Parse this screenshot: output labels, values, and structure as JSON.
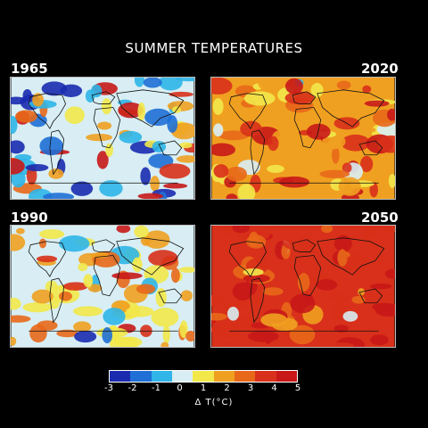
{
  "title": "SUMMER TEMPERATURES",
  "panels": [
    {
      "label": "1965",
      "scheme": "mixed_cool"
    },
    {
      "label": "2020",
      "scheme": "warm"
    },
    {
      "label": "1990",
      "scheme": "mixed_warm"
    },
    {
      "label": "2050",
      "scheme": "hot"
    }
  ],
  "legend": {
    "colors": [
      "#1a2bb0",
      "#1f6fd6",
      "#2fb5e8",
      "#d8eef4",
      "#f2e84a",
      "#f0a020",
      "#e8681a",
      "#d8301a",
      "#c81818"
    ],
    "ticks": [
      "-3",
      "-2",
      "-1",
      "0",
      "1",
      "2",
      "3",
      "4",
      "5"
    ],
    "unit": "Δ T(°C)"
  }
}
